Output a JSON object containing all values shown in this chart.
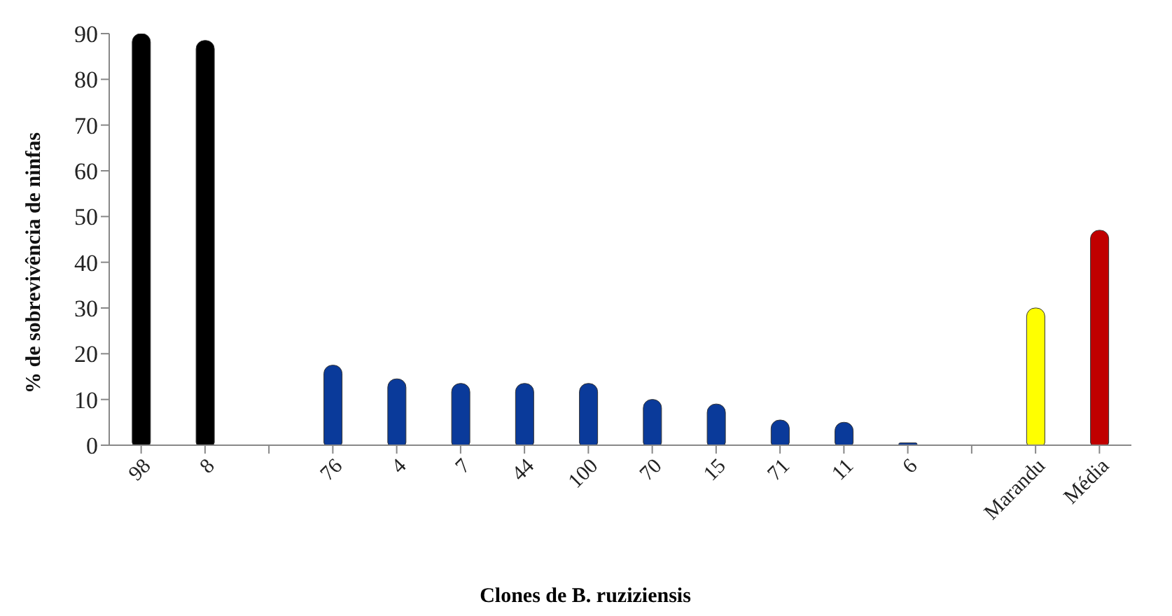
{
  "chart_data": {
    "type": "bar",
    "xlabel": "Clones de B. ruziziensis",
    "ylabel": "% de sobrevivência de ninfas",
    "categories": [
      "98",
      "8",
      null,
      "76",
      "4",
      "7",
      "44",
      "100",
      "70",
      "15",
      "71",
      "11",
      "6",
      null,
      "Marandu",
      "Média"
    ],
    "values": [
      90,
      88.5,
      null,
      17.5,
      14.5,
      13.5,
      13.5,
      13.5,
      10,
      9,
      5.5,
      5,
      0.5,
      null,
      30,
      47
    ],
    "colors": [
      "#000000",
      "#000000",
      "#0a3a9a",
      "#0a3a9a",
      "#0a3a9a",
      "#0a3a9a",
      "#0a3a9a",
      "#0a3a9a",
      "#0a3a9a",
      "#0a3a9a",
      "#0a3a9a",
      "#0a3a9a",
      "#0a3a9a",
      "#0a3a9a",
      "#ffff00",
      "#c00000"
    ],
    "ylim": [
      0,
      90
    ],
    "yticks": [
      0,
      10,
      20,
      30,
      40,
      50,
      60,
      70,
      80,
      90
    ],
    "grid": false,
    "legend": false
  }
}
